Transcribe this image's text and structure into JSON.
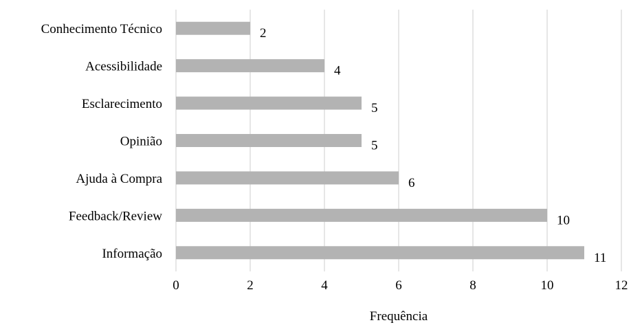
{
  "chart_data": {
    "type": "bar",
    "orientation": "horizontal",
    "categories": [
      "Conhecimento Técnico",
      "Acessibilidade",
      "Esclarecimento",
      "Opinião",
      "Ajuda à Compra",
      "Feedback/Review",
      "Informação"
    ],
    "values": [
      2,
      4,
      5,
      5,
      6,
      10,
      11
    ],
    "data_labels": [
      "2",
      "4",
      "5",
      "5",
      "6",
      "10",
      "11"
    ],
    "title": "",
    "xlabel": "Frequência",
    "ylabel": "",
    "xlim": [
      0,
      12
    ],
    "xticks": [
      0,
      2,
      4,
      6,
      8,
      10,
      12
    ],
    "xtick_labels": [
      "0",
      "2",
      "4",
      "6",
      "8",
      "10",
      "12"
    ],
    "grid": "vertical",
    "legend": "none",
    "bar_color": "#b3b3b3",
    "grid_color": "#d9d9d9"
  }
}
